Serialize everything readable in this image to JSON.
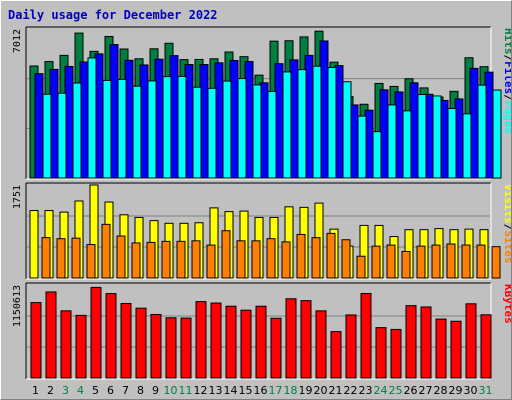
{
  "chart_data": {
    "type": "bar",
    "title": "Daily usage for December 2022",
    "categories": [
      "1",
      "2",
      "3",
      "4",
      "5",
      "6",
      "7",
      "8",
      "9",
      "10",
      "11",
      "12",
      "13",
      "14",
      "15",
      "16",
      "17",
      "18",
      "19",
      "20",
      "21",
      "22",
      "23",
      "24",
      "25",
      "26",
      "27",
      "28",
      "29",
      "30",
      "31"
    ],
    "weekend_days": [
      "3",
      "4",
      "10",
      "11",
      "17",
      "18",
      "24",
      "25",
      "31"
    ],
    "panels": [
      {
        "name": "top",
        "ytick": "7012",
        "ymax": 7012,
        "series": [
          {
            "name": "Hits",
            "color": "#008040",
            "values": [
              5270,
              5480,
              5770,
              6820,
              5960,
              6660,
              6070,
              5610,
              6080,
              6340,
              5570,
              5580,
              5610,
              5930,
              5710,
              4840,
              6440,
              6460,
              6640,
              6910,
              5450,
              3830,
              3470,
              4450,
              4310,
              4670,
              4240,
              3810,
              4080,
              5660,
              5240
            ]
          },
          {
            "name": "Files",
            "color": "#0000ff",
            "values": [
              4910,
              5110,
              5250,
              5460,
              5840,
              6280,
              5540,
              5320,
              5590,
              5760,
              5340,
              5340,
              5420,
              5530,
              5480,
              4480,
              5380,
              5560,
              5770,
              6450,
              5290,
              3440,
              3190,
              4150,
              4050,
              4480,
              3940,
              3650,
              3720,
              5160,
              4980
            ]
          },
          {
            "name": "Pages",
            "color": "#00ffff",
            "values": [
              3940,
              3990,
              4470,
              5650,
              4590,
              4640,
              4320,
              4570,
              4770,
              4780,
              4270,
              4220,
              4560,
              4680,
              4380,
              4070,
              4990,
              5100,
              5260,
              5200,
              4530,
              2910,
              2180,
              3440,
              3160,
              3930,
              3860,
              3270,
              3020,
              4370,
              4140
            ]
          }
        ]
      },
      {
        "name": "middle",
        "ytick": "1751",
        "ymax": 1751,
        "series": [
          {
            "name": "Visits",
            "color": "#ffff00",
            "values": [
              1270,
              1270,
              1240,
              1450,
              1751,
              1430,
              1190,
              1140,
              1080,
              1030,
              1030,
              1040,
              1320,
              1250,
              1260,
              1140,
              1140,
              1340,
              1330,
              1410,
              920,
              600,
              990,
              990,
              780,
              910,
              910,
              930,
              910,
              920,
              910
            ]
          },
          {
            "name": "Sites",
            "color": "#ff8000",
            "values": [
              760,
              740,
              750,
              630,
              1010,
              790,
              660,
              670,
              690,
              690,
              700,
              620,
              890,
              700,
              700,
              740,
              680,
              820,
              760,
              840,
              720,
              410,
              600,
              620,
              500,
              600,
              620,
              640,
              620,
              620,
              590
            ]
          }
        ]
      },
      {
        "name": "bottom",
        "ytick": "1150613",
        "ymax": 1150613,
        "series": [
          {
            "name": "KBytes",
            "color": "#ff0000",
            "values": [
              933000,
              1065000,
              831000,
              775000,
              1121000,
              1044000,
              922000,
              864000,
              786000,
              745000,
              741000,
              945000,
              927000,
              888000,
              839000,
              888000,
              739000,
              980000,
              957000,
              831000,
              574000,
              780000,
              1046000,
              623000,
              601000,
              895000,
              879000,
              729000,
              702000,
              918000,
              782000
            ]
          }
        ]
      }
    ],
    "right_labels": [
      {
        "panel": "top",
        "parts": [
          {
            "text": "Hits",
            "color": "#008040"
          },
          {
            "text": "/",
            "color": "#000000"
          },
          {
            "text": "Files",
            "color": "#0000ff"
          },
          {
            "text": "/",
            "color": "#000000"
          },
          {
            "text": "Pages",
            "color": "#00ffff"
          }
        ]
      },
      {
        "panel": "middle",
        "parts": [
          {
            "text": "Visits",
            "color": "#ffff00"
          },
          {
            "text": "/",
            "color": "#000000"
          },
          {
            "text": "Sites",
            "color": "#ff8000"
          }
        ]
      },
      {
        "panel": "bottom",
        "parts": [
          {
            "text": "KBytes",
            "color": "#ff0000"
          }
        ]
      }
    ],
    "weekday_tick_color": "#000000",
    "weekend_tick_color": "#008040",
    "grid": true,
    "legend": "right-vertical"
  }
}
